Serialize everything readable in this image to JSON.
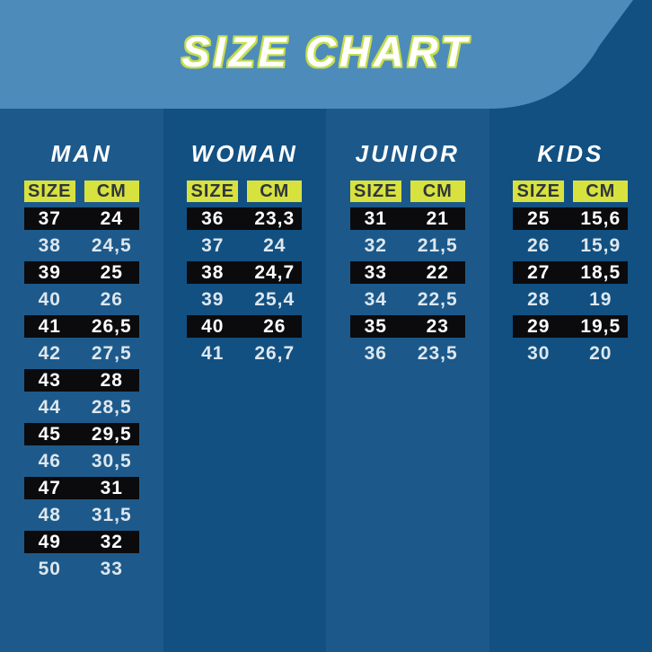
{
  "header": {
    "title": "SIZE CHART"
  },
  "colors": {
    "header_bg": "#4D8CBA",
    "band_light": "#1D5A8B",
    "band_dark": "#125082",
    "accent_yellow": "#D8E23F",
    "title_outline": "#C6DD4D",
    "row_bar_black": "#0B0B0D",
    "text_light": "#DEE7EE",
    "text_on_yellow": "#2E373C"
  },
  "chart_data": {
    "type": "table",
    "title": "SIZE CHART",
    "layout_hint": "four vertical groups; odd rows on black bars, white text; SIZE/CM headers on yellow chips",
    "groups": [
      {
        "label": "MAN",
        "headers": [
          "SIZE",
          "CM"
        ],
        "rows": [
          [
            "37",
            "24"
          ],
          [
            "38",
            "24,5"
          ],
          [
            "39",
            "25"
          ],
          [
            "40",
            "26"
          ],
          [
            "41",
            "26,5"
          ],
          [
            "42",
            "27,5"
          ],
          [
            "43",
            "28"
          ],
          [
            "44",
            "28,5"
          ],
          [
            "45",
            "29,5"
          ],
          [
            "46",
            "30,5"
          ],
          [
            "47",
            "31"
          ],
          [
            "48",
            "31,5"
          ],
          [
            "49",
            "32"
          ],
          [
            "50",
            "33"
          ]
        ]
      },
      {
        "label": "WOMAN",
        "headers": [
          "SIZE",
          "CM"
        ],
        "rows": [
          [
            "36",
            "23,3"
          ],
          [
            "37",
            "24"
          ],
          [
            "38",
            "24,7"
          ],
          [
            "39",
            "25,4"
          ],
          [
            "40",
            "26"
          ],
          [
            "41",
            "26,7"
          ]
        ]
      },
      {
        "label": "JUNIOR",
        "headers": [
          "SIZE",
          "CM"
        ],
        "rows": [
          [
            "31",
            "21"
          ],
          [
            "32",
            "21,5"
          ],
          [
            "33",
            "22"
          ],
          [
            "34",
            "22,5"
          ],
          [
            "35",
            "23"
          ],
          [
            "36",
            "23,5"
          ]
        ]
      },
      {
        "label": "KIDS",
        "headers": [
          "SIZE",
          "CM"
        ],
        "rows": [
          [
            "25",
            "15,6"
          ],
          [
            "26",
            "15,9"
          ],
          [
            "27",
            "18,5"
          ],
          [
            "28",
            "19"
          ],
          [
            "29",
            "19,5"
          ],
          [
            "30",
            "20"
          ]
        ]
      }
    ]
  }
}
